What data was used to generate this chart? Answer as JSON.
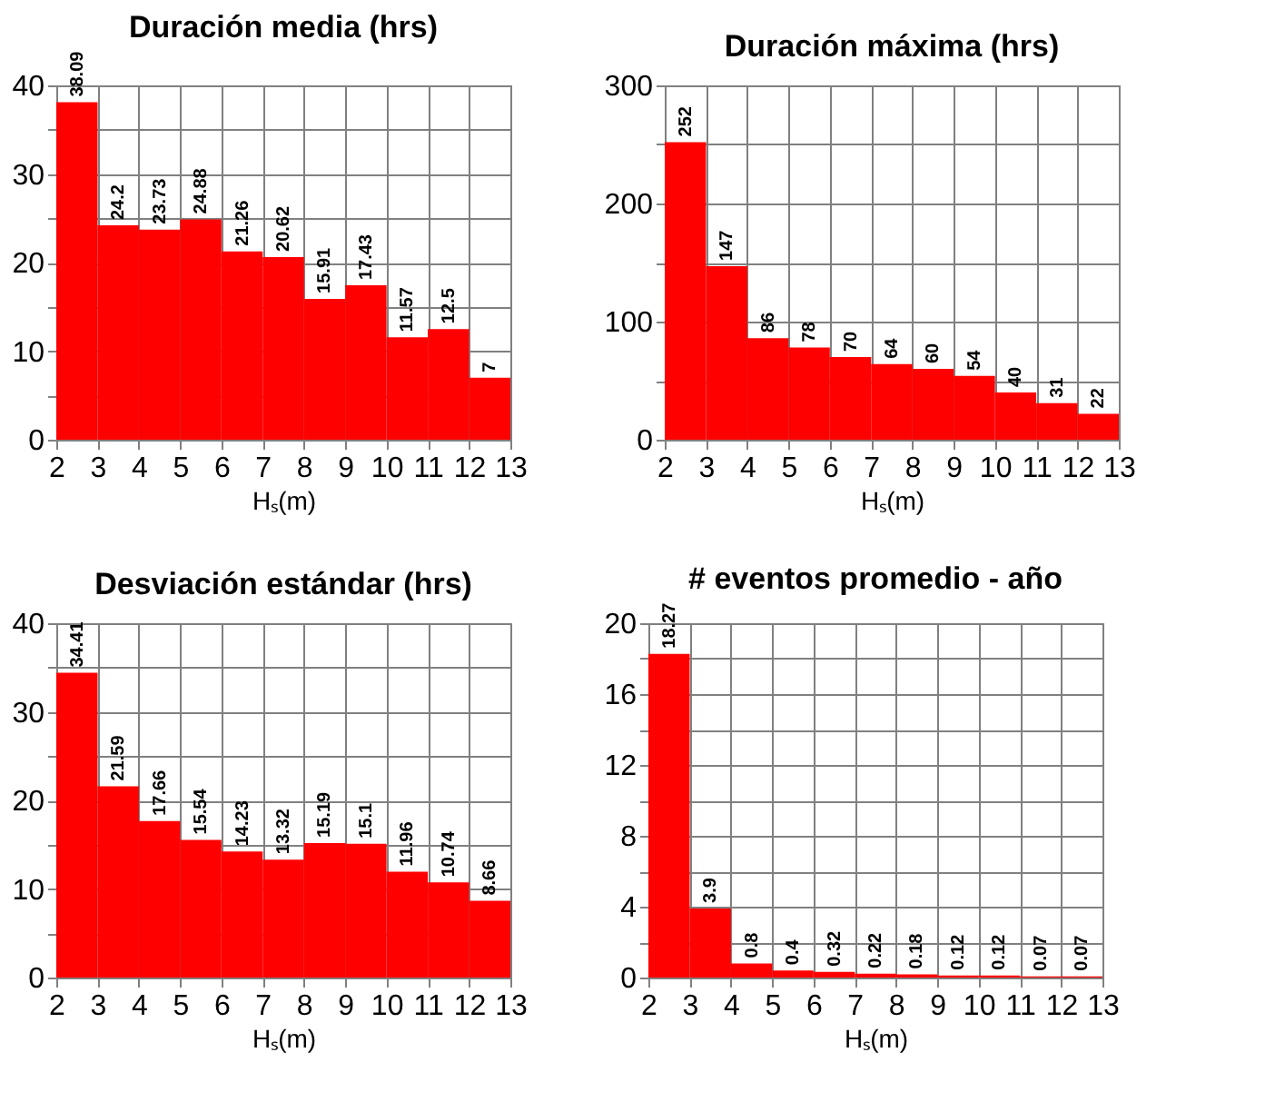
{
  "chart_data": [
    {
      "type": "histogram",
      "title": "Duración media (hrs)",
      "xlabel": "Hₛ(m)",
      "bins": [
        2,
        3,
        4,
        5,
        6,
        7,
        8,
        9,
        10,
        11,
        12,
        13
      ],
      "values": [
        38.09,
        24.2,
        23.73,
        24.88,
        21.26,
        20.62,
        15.91,
        17.43,
        11.57,
        12.5,
        7
      ],
      "color": "#ff0000",
      "data_labels": true,
      "grid": true,
      "xlim": [
        2,
        13
      ],
      "xticks": [
        2,
        3,
        4,
        5,
        6,
        7,
        8,
        9,
        10,
        11,
        12,
        13
      ],
      "ylim": [
        0,
        40
      ],
      "yticks": [
        0,
        {
          "value": 5,
          "label": null
        },
        10,
        {
          "value": 15,
          "label": null
        },
        20,
        {
          "value": 25,
          "label": null
        },
        30,
        {
          "value": 35,
          "label": null
        },
        40
      ]
    },
    {
      "type": "histogram",
      "title": "Duración máxima (hrs)",
      "xlabel": "Hₛ(m)",
      "bins": [
        2,
        3,
        4,
        5,
        6,
        7,
        8,
        9,
        10,
        11,
        12,
        13
      ],
      "values": [
        252,
        147,
        86,
        78,
        70,
        64,
        60,
        54,
        40,
        31,
        22
      ],
      "color": "#ff0000",
      "data_labels": true,
      "grid": true,
      "xlim": [
        2,
        13
      ],
      "xticks": [
        2,
        3,
        4,
        5,
        6,
        7,
        8,
        9,
        10,
        11,
        12,
        13
      ],
      "ylim": [
        0,
        300
      ],
      "yticks": [
        0,
        {
          "value": 50,
          "label": null
        },
        100,
        {
          "value": 150,
          "label": null
        },
        200,
        {
          "value": 250,
          "label": null
        },
        300
      ]
    },
    {
      "type": "histogram",
      "title": "Desviación estándar (hrs)",
      "xlabel": "Hₛ(m)",
      "bins": [
        2,
        3,
        4,
        5,
        6,
        7,
        8,
        9,
        10,
        11,
        12,
        13
      ],
      "values": [
        34.41,
        21.59,
        17.66,
        15.54,
        14.23,
        13.32,
        15.19,
        15.1,
        11.96,
        10.74,
        8.66
      ],
      "color": "#ff0000",
      "data_labels": true,
      "grid": true,
      "xlim": [
        2,
        13
      ],
      "xticks": [
        2,
        3,
        4,
        5,
        6,
        7,
        8,
        9,
        10,
        11,
        12,
        13
      ],
      "ylim": [
        0,
        40
      ],
      "yticks": [
        0,
        {
          "value": 5,
          "label": null
        },
        10,
        {
          "value": 15,
          "label": null
        },
        20,
        {
          "value": 25,
          "label": null
        },
        30,
        {
          "value": 35,
          "label": null
        },
        40
      ]
    },
    {
      "type": "histogram",
      "title": "# eventos promedio - año",
      "xlabel": "Hₛ(m)",
      "bins": [
        2,
        3,
        4,
        5,
        6,
        7,
        8,
        9,
        10,
        11,
        12,
        13
      ],
      "values": [
        18.27,
        3.9,
        0.8,
        0.4,
        0.32,
        0.22,
        0.18,
        0.12,
        0.12,
        0.07,
        0.07
      ],
      "color": "#ff0000",
      "data_labels": true,
      "grid": true,
      "xlim": [
        2,
        13
      ],
      "xticks": [
        2,
        3,
        4,
        5,
        6,
        7,
        8,
        9,
        10,
        11,
        12,
        13
      ],
      "ylim": [
        0,
        20
      ],
      "yticks": [
        0,
        {
          "value": 2,
          "label": null
        },
        4,
        {
          "value": 6,
          "label": null
        },
        8,
        {
          "value": 10,
          "label": null
        },
        12,
        {
          "value": 14,
          "label": null
        },
        16,
        {
          "value": 18,
          "label": null
        },
        20
      ]
    }
  ]
}
